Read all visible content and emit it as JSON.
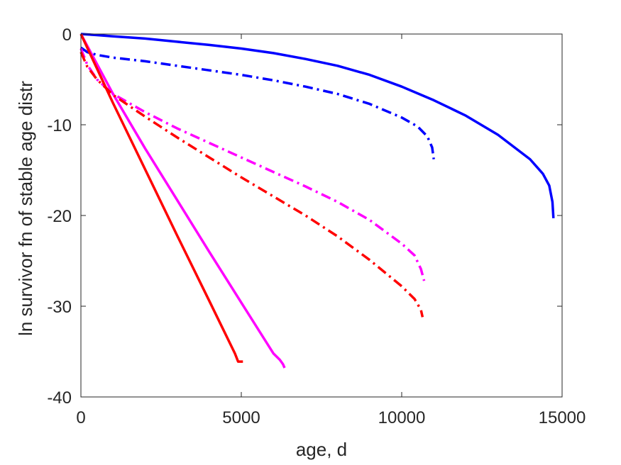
{
  "chart_data": {
    "type": "line",
    "title": "",
    "xlabel": "age, d",
    "ylabel": "ln survivor fn of stable age distr",
    "xlim": [
      0,
      15000
    ],
    "ylim": [
      -40,
      0
    ],
    "xticks": [
      0,
      5000,
      10000,
      15000
    ],
    "xtick_labels": [
      "0",
      "5000",
      "10000",
      "15000"
    ],
    "yticks": [
      0,
      -10,
      -20,
      -30,
      -40
    ],
    "ytick_labels": [
      "0",
      "-10",
      "-20",
      "-30",
      "-40"
    ],
    "grid": false,
    "legend": "none",
    "series": [
      {
        "color": "#0000ff",
        "style": "solid",
        "x": [
          0,
          500,
          1000,
          2000,
          3000,
          4000,
          5000,
          6000,
          7000,
          8000,
          9000,
          10000,
          11000,
          12000,
          13000,
          14000,
          14400,
          14600,
          14700,
          14730
        ],
        "y": [
          0,
          -0.12,
          -0.25,
          -0.5,
          -0.85,
          -1.2,
          -1.6,
          -2.1,
          -2.75,
          -3.5,
          -4.5,
          -5.8,
          -7.3,
          -9.0,
          -11.1,
          -13.8,
          -15.4,
          -16.7,
          -18.5,
          -20.3
        ]
      },
      {
        "color": "#0000ff",
        "style": "dashdot",
        "x": [
          0,
          200,
          500,
          1000,
          2000,
          3000,
          4000,
          5000,
          6000,
          7000,
          8000,
          9000,
          10000,
          10500,
          10800,
          10950,
          11000
        ],
        "y": [
          -1.5,
          -2.0,
          -2.3,
          -2.6,
          -3.0,
          -3.5,
          -4.0,
          -4.5,
          -5.1,
          -5.8,
          -6.6,
          -7.7,
          -9.2,
          -10.2,
          -11.3,
          -12.5,
          -13.8
        ]
      },
      {
        "color": "#ff00ff",
        "style": "solid",
        "x": [
          0,
          1000,
          2000,
          3000,
          4000,
          5000,
          6000,
          6200,
          6300,
          6350
        ],
        "y": [
          0,
          -6.6,
          -12.6,
          -18.3,
          -24.0,
          -29.6,
          -35.2,
          -35.9,
          -36.4,
          -36.8
        ]
      },
      {
        "color": "#ff00ff",
        "style": "dashdot",
        "x": [
          0,
          200,
          500,
          1000,
          2000,
          3000,
          4000,
          5000,
          6000,
          7000,
          8000,
          9000,
          10000,
          10400,
          10600,
          10700
        ],
        "y": [
          -1.6,
          -3.4,
          -5.0,
          -6.6,
          -8.6,
          -10.4,
          -12.0,
          -13.6,
          -15.2,
          -16.8,
          -18.5,
          -20.5,
          -23.1,
          -24.4,
          -25.9,
          -27.2
        ]
      },
      {
        "color": "#ff0000",
        "style": "solid",
        "x": [
          0,
          1000,
          2000,
          3000,
          4000,
          4800,
          4900,
          5000,
          5050
        ],
        "y": [
          0,
          -7.6,
          -14.9,
          -22.2,
          -29.4,
          -35.2,
          -36.1,
          -36.1,
          -36.1
        ]
      },
      {
        "color": "#ff0000",
        "style": "dashdot",
        "x": [
          0,
          200,
          500,
          1000,
          2000,
          3000,
          4000,
          5000,
          6000,
          7000,
          8000,
          9000,
          10000,
          10400,
          10600,
          10650
        ],
        "y": [
          -2.0,
          -3.6,
          -5.0,
          -6.7,
          -9.1,
          -11.4,
          -13.6,
          -15.8,
          -17.9,
          -20.0,
          -22.3,
          -24.9,
          -27.8,
          -29.2,
          -30.4,
          -31.2
        ]
      }
    ]
  }
}
